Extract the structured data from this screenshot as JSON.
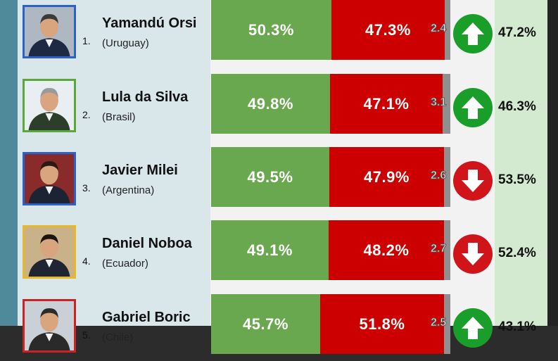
{
  "colors": {
    "approve": "#6aa84f",
    "disapprove": "#cc0000",
    "other": "#8f8f8f",
    "arrow_up": "#1a9e2a",
    "arrow_down": "#d0141a"
  },
  "rows": [
    {
      "rank": "1.",
      "name": "Yamandú Orsi",
      "country": "(Uruguay)",
      "approve": "50.3%",
      "disapprove": "47.3%",
      "other": "2.4",
      "approve_value": 50.3,
      "disapprove_value": 47.3,
      "trend": "up",
      "trend_icon": "arrow-up-icon",
      "change": "47.2%",
      "frame_color": "#2a63c8"
    },
    {
      "rank": "2.",
      "name": "Lula da Silva",
      "country": "(Brasil)",
      "approve": "49.8%",
      "disapprove": "47.1%",
      "other": "3.1",
      "approve_value": 49.8,
      "disapprove_value": 47.1,
      "trend": "up",
      "trend_icon": "arrow-up-icon",
      "change": "46.3%",
      "frame_color": "#5aa83a"
    },
    {
      "rank": "3.",
      "name": "Javier Milei",
      "country": "(Argentina)",
      "approve": "49.5%",
      "disapprove": "47.9%",
      "other": "2.6",
      "approve_value": 49.5,
      "disapprove_value": 47.9,
      "trend": "down",
      "trend_icon": "arrow-down-icon",
      "change": "53.5%",
      "frame_color": "#2a63c8"
    },
    {
      "rank": "4.",
      "name": "Daniel Noboa",
      "country": "(Ecuador)",
      "approve": "49.1%",
      "disapprove": "48.2%",
      "other": "2.7",
      "approve_value": 49.1,
      "disapprove_value": 48.2,
      "trend": "down",
      "trend_icon": "arrow-down-icon",
      "change": "52.4%",
      "frame_color": "#e8b82a"
    },
    {
      "rank": "5.",
      "name": "Gabriel Boric",
      "country": "(Chile)",
      "approve": "45.7%",
      "disapprove": "51.8%",
      "other": "2.5",
      "approve_value": 45.7,
      "disapprove_value": 51.8,
      "trend": "up",
      "trend_icon": "arrow-up-icon",
      "change": "43.1%",
      "frame_color": "#cc2222"
    }
  ]
}
